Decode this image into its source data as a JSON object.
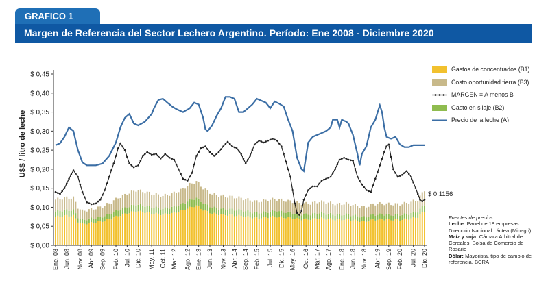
{
  "header": {
    "tab_label": "GRAFICO 1",
    "title": "Margen de Referencia del Sector Lechero Argentino. Período: Ene 2008 - Diciembre 2020"
  },
  "colors": {
    "tab_bg": "#1f6fb6",
    "title_bg": "#0f58a3",
    "concentrados": "#f2c12e",
    "tierra": "#c8b98a",
    "silaje": "#8fbc4f",
    "margen": "#222222",
    "precio": "#3b6ea5"
  },
  "legend": [
    {
      "label": "Gastos de concentrados (B1)",
      "kind": "concentrados"
    },
    {
      "label": "Costo oportunidad tierra (B3)",
      "kind": "tierra"
    },
    {
      "label": "MARGEN = A menos B",
      "kind": "margen"
    },
    {
      "label": "Gasto en silaje (B2)",
      "kind": "silaje"
    },
    {
      "label": "Precio de la leche (A)",
      "kind": "precio"
    }
  ],
  "sources": {
    "heading": "Fuentes de precios:",
    "lines": [
      {
        "key": "Leche:",
        "text": "Panel de 18 empresas. Dirección Nacional Láctea (Minagri)"
      },
      {
        "key": "Maíz y soja:",
        "text": "Cámara Arbitral de Cereales. Bolsa de Comercio de Rosario"
      },
      {
        "key": "Dólar:",
        "text": "Mayorista, tipo de cambio de referencia. BCRA"
      }
    ]
  },
  "chart_data": {
    "type": "bar+line",
    "ylabel": "U$S / litro de leche",
    "ylim": [
      0,
      0.45
    ],
    "yticks": [
      "$ 0,00",
      "$ 0,05",
      "$ 0,10",
      "$ 0,15",
      "$ 0,20",
      "$ 0,25",
      "$ 0,30",
      "$ 0,35",
      "$ 0,40",
      "$ 0,45"
    ],
    "xticks": [
      "Ene. 08",
      "Jun. 08",
      "Nov. 08",
      "Abr. 09",
      "Sep. 09",
      "Feb. 10",
      "Jul. 10",
      "Dic. 10",
      "May. 11",
      "Oct. 11",
      "Mar. 12",
      "Ago. 12",
      "Ene. 13",
      "Jun. 13",
      "Nov. 13",
      "Abr. 14",
      "Sep. 14",
      "Feb. 15",
      "Jul. 15",
      "Dic. 15",
      "May. 16",
      "Oct. 16",
      "Mar. 17",
      "Ago. 17",
      "Ene. 18",
      "Jun. 18",
      "Nov. 18",
      "Abr. 19",
      "Sep. 19",
      "Feb. 20",
      "Jul. 20",
      "Dic. 20"
    ],
    "annotation": "$ 0,1156",
    "n_months": 156,
    "precio_anchors": [
      [
        0,
        0.263
      ],
      [
        2,
        0.268
      ],
      [
        4,
        0.285
      ],
      [
        6,
        0.31
      ],
      [
        8,
        0.3
      ],
      [
        10,
        0.25
      ],
      [
        12,
        0.218
      ],
      [
        14,
        0.21
      ],
      [
        18,
        0.21
      ],
      [
        21,
        0.215
      ],
      [
        24,
        0.235
      ],
      [
        27,
        0.27
      ],
      [
        29,
        0.31
      ],
      [
        31,
        0.335
      ],
      [
        33,
        0.345
      ],
      [
        35,
        0.32
      ],
      [
        37,
        0.315
      ],
      [
        40,
        0.325
      ],
      [
        43,
        0.345
      ],
      [
        44,
        0.36
      ],
      [
        46,
        0.382
      ],
      [
        48,
        0.385
      ],
      [
        50,
        0.375
      ],
      [
        52,
        0.365
      ],
      [
        54,
        0.358
      ],
      [
        57,
        0.35
      ],
      [
        60,
        0.36
      ],
      [
        62,
        0.375
      ],
      [
        64,
        0.37
      ],
      [
        66,
        0.335
      ],
      [
        67,
        0.305
      ],
      [
        68,
        0.3
      ],
      [
        70,
        0.315
      ],
      [
        72,
        0.34
      ],
      [
        74,
        0.36
      ],
      [
        76,
        0.39
      ],
      [
        78,
        0.39
      ],
      [
        80,
        0.385
      ],
      [
        82,
        0.35
      ],
      [
        84,
        0.35
      ],
      [
        86,
        0.36
      ],
      [
        88,
        0.37
      ],
      [
        90,
        0.385
      ],
      [
        92,
        0.38
      ],
      [
        94,
        0.375
      ],
      [
        96,
        0.36
      ],
      [
        98,
        0.378
      ],
      [
        100,
        0.372
      ],
      [
        102,
        0.365
      ],
      [
        104,
        0.33
      ],
      [
        106,
        0.3
      ],
      [
        108,
        0.23
      ],
      [
        110,
        0.2
      ],
      [
        111,
        0.195
      ],
      [
        113,
        0.27
      ],
      [
        115,
        0.285
      ],
      [
        117,
        0.29
      ],
      [
        119,
        0.295
      ],
      [
        121,
        0.3
      ],
      [
        123,
        0.31
      ],
      [
        124,
        0.33
      ],
      [
        126,
        0.33
      ],
      [
        127,
        0.31
      ],
      [
        128,
        0.33
      ],
      [
        130,
        0.325
      ],
      [
        131,
        0.32
      ],
      [
        133,
        0.29
      ],
      [
        135,
        0.24
      ],
      [
        136,
        0.21
      ],
      [
        137,
        0.24
      ],
      [
        139,
        0.26
      ],
      [
        141,
        0.31
      ],
      [
        143,
        0.33
      ],
      [
        145,
        0.368
      ],
      [
        146,
        0.35
      ],
      [
        147,
        0.31
      ],
      [
        148,
        0.285
      ],
      [
        150,
        0.28
      ],
      [
        152,
        0.285
      ],
      [
        154,
        0.265
      ],
      [
        156,
        0.258
      ],
      [
        158,
        0.258
      ],
      [
        160,
        0.263
      ]
    ],
    "margen_anchors": [
      [
        0,
        0.14
      ],
      [
        2,
        0.135
      ],
      [
        4,
        0.15
      ],
      [
        6,
        0.175
      ],
      [
        8,
        0.197
      ],
      [
        10,
        0.18
      ],
      [
        12,
        0.14
      ],
      [
        14,
        0.113
      ],
      [
        16,
        0.108
      ],
      [
        18,
        0.11
      ],
      [
        20,
        0.12
      ],
      [
        22,
        0.145
      ],
      [
        24,
        0.18
      ],
      [
        26,
        0.215
      ],
      [
        28,
        0.255
      ],
      [
        29,
        0.268
      ],
      [
        31,
        0.25
      ],
      [
        33,
        0.215
      ],
      [
        35,
        0.205
      ],
      [
        37,
        0.21
      ],
      [
        39,
        0.235
      ],
      [
        41,
        0.245
      ],
      [
        43,
        0.238
      ],
      [
        45,
        0.24
      ],
      [
        47,
        0.228
      ],
      [
        49,
        0.24
      ],
      [
        51,
        0.23
      ],
      [
        53,
        0.225
      ],
      [
        55,
        0.2
      ],
      [
        57,
        0.175
      ],
      [
        59,
        0.17
      ],
      [
        61,
        0.19
      ],
      [
        63,
        0.235
      ],
      [
        65,
        0.255
      ],
      [
        67,
        0.26
      ],
      [
        69,
        0.245
      ],
      [
        71,
        0.235
      ],
      [
        73,
        0.245
      ],
      [
        75,
        0.26
      ],
      [
        77,
        0.272
      ],
      [
        79,
        0.26
      ],
      [
        81,
        0.255
      ],
      [
        83,
        0.24
      ],
      [
        85,
        0.215
      ],
      [
        87,
        0.235
      ],
      [
        89,
        0.265
      ],
      [
        91,
        0.275
      ],
      [
        93,
        0.27
      ],
      [
        95,
        0.275
      ],
      [
        97,
        0.28
      ],
      [
        99,
        0.275
      ],
      [
        101,
        0.26
      ],
      [
        103,
        0.22
      ],
      [
        105,
        0.18
      ],
      [
        107,
        0.11
      ],
      [
        108,
        0.085
      ],
      [
        109,
        0.08
      ],
      [
        110,
        0.09
      ],
      [
        111,
        0.12
      ],
      [
        113,
        0.145
      ],
      [
        115,
        0.155
      ],
      [
        117,
        0.155
      ],
      [
        119,
        0.17
      ],
      [
        121,
        0.175
      ],
      [
        123,
        0.18
      ],
      [
        125,
        0.2
      ],
      [
        127,
        0.225
      ],
      [
        129,
        0.23
      ],
      [
        131,
        0.225
      ],
      [
        133,
        0.222
      ],
      [
        135,
        0.18
      ],
      [
        137,
        0.16
      ],
      [
        139,
        0.145
      ],
      [
        141,
        0.14
      ],
      [
        143,
        0.175
      ],
      [
        145,
        0.21
      ],
      [
        147,
        0.245
      ],
      [
        148,
        0.26
      ],
      [
        149,
        0.265
      ],
      [
        151,
        0.2
      ],
      [
        153,
        0.18
      ],
      [
        155,
        0.185
      ],
      [
        157,
        0.195
      ],
      [
        159,
        0.18
      ],
      [
        161,
        0.15
      ],
      [
        163,
        0.12
      ],
      [
        164,
        0.1156
      ],
      [
        165,
        0.12
      ]
    ],
    "cost_anchors": [
      [
        0,
        0.12
      ],
      [
        4,
        0.125
      ],
      [
        8,
        0.125
      ],
      [
        10,
        0.1
      ],
      [
        12,
        0.09
      ],
      [
        16,
        0.095
      ],
      [
        20,
        0.1
      ],
      [
        24,
        0.11
      ],
      [
        28,
        0.125
      ],
      [
        32,
        0.135
      ],
      [
        36,
        0.145
      ],
      [
        40,
        0.14
      ],
      [
        44,
        0.135
      ],
      [
        48,
        0.13
      ],
      [
        52,
        0.135
      ],
      [
        56,
        0.145
      ],
      [
        60,
        0.16
      ],
      [
        63,
        0.168
      ],
      [
        66,
        0.15
      ],
      [
        70,
        0.135
      ],
      [
        74,
        0.13
      ],
      [
        78,
        0.128
      ],
      [
        82,
        0.125
      ],
      [
        86,
        0.12
      ],
      [
        90,
        0.115
      ],
      [
        94,
        0.118
      ],
      [
        98,
        0.122
      ],
      [
        102,
        0.118
      ],
      [
        106,
        0.115
      ],
      [
        110,
        0.11
      ],
      [
        114,
        0.11
      ],
      [
        118,
        0.115
      ],
      [
        122,
        0.112
      ],
      [
        126,
        0.108
      ],
      [
        130,
        0.11
      ],
      [
        134,
        0.105
      ],
      [
        138,
        0.1
      ],
      [
        142,
        0.108
      ],
      [
        146,
        0.11
      ],
      [
        150,
        0.108
      ],
      [
        154,
        0.108
      ],
      [
        158,
        0.112
      ],
      [
        162,
        0.12
      ],
      [
        165,
        0.145
      ]
    ]
  }
}
